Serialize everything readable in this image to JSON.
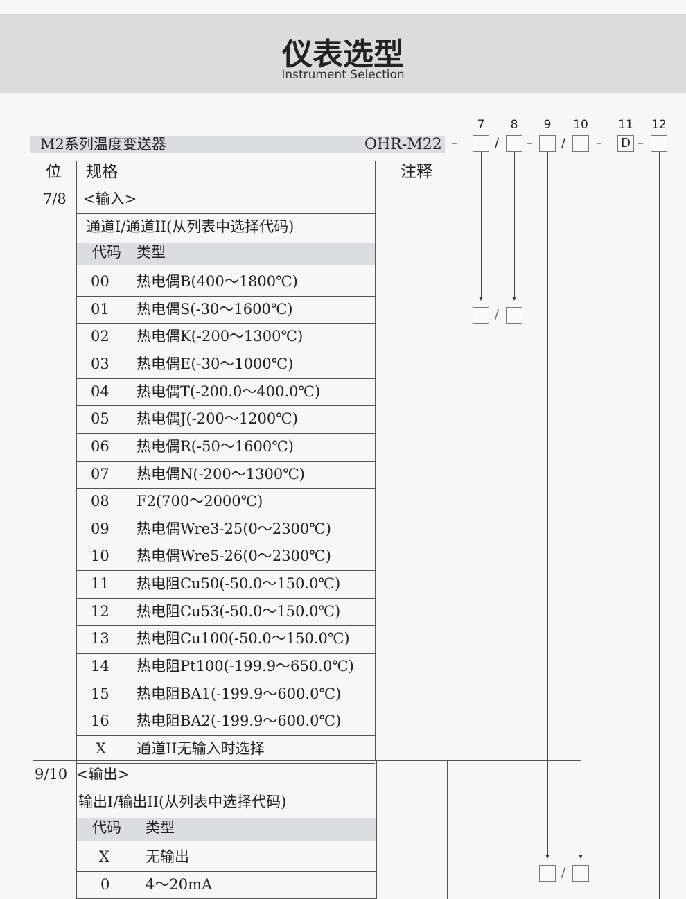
{
  "header": {
    "title": "仪表选型",
    "subtitle": "Instrument Selection"
  },
  "product": {
    "name": "M2系列温度变送器",
    "model": "OHR-M22"
  },
  "code_positions": {
    "labels": [
      "7",
      "8",
      "9",
      "10",
      "11",
      "12"
    ],
    "fixed_values": {
      "11": "D"
    },
    "dash": "–",
    "slash": "/"
  },
  "table": {
    "headers": {
      "position": "位",
      "spec": "规格",
      "note": "注释"
    },
    "input": {
      "position": "7/8",
      "title": "<输入>",
      "subtitle": "通道I/通道II(从列表中选择代码)",
      "col_code": "代码",
      "col_type": "类型",
      "rows": [
        {
          "code": "00",
          "type": "热电偶B(400～1800℃)"
        },
        {
          "code": "01",
          "type": "热电偶S(-30～1600℃)"
        },
        {
          "code": "02",
          "type": "热电偶K(-200～1300℃)"
        },
        {
          "code": "03",
          "type": "热电偶E(-30～1000℃)"
        },
        {
          "code": "04",
          "type": "热电偶T(-200.0～400.0℃)"
        },
        {
          "code": "05",
          "type": "热电偶J(-200～1200℃)"
        },
        {
          "code": "06",
          "type": "热电偶R(-50～1600℃)"
        },
        {
          "code": "07",
          "type": "热电偶N(-200～1300℃)"
        },
        {
          "code": "08",
          "type": "F2(700～2000℃)"
        },
        {
          "code": "09",
          "type": "热电偶Wre3-25(0～2300℃)"
        },
        {
          "code": "10",
          "type": "热电偶Wre5-26(0～2300℃)"
        },
        {
          "code": "11",
          "type": "热电阻Cu50(-50.0～150.0℃)"
        },
        {
          "code": "12",
          "type": "热电阻Cu53(-50.0～150.0℃)"
        },
        {
          "code": "13",
          "type": "热电阻Cu100(-50.0～150.0℃)"
        },
        {
          "code": "14",
          "type": "热电阻Pt100(-199.9～650.0℃)"
        },
        {
          "code": "15",
          "type": "热电阻BA1(-199.9～600.0℃)"
        },
        {
          "code": "16",
          "type": "热电阻BA2(-199.9～600.0℃)"
        },
        {
          "code": "X",
          "type": "通道II无输入时选择"
        }
      ]
    },
    "output": {
      "position": "9/10",
      "title": "<输出>",
      "subtitle": "输出I/输出II(从列表中选择代码)",
      "col_code": "代码",
      "col_type": "类型",
      "rows": [
        {
          "code": "X",
          "type": "无输出"
        },
        {
          "code": "0",
          "type": "4～20mA"
        }
      ]
    }
  }
}
